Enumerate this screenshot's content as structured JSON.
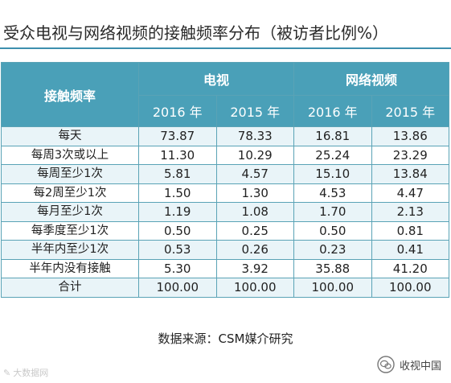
{
  "title": "受众电视与网络视频的接触频率分布（被访者比例%）",
  "table": {
    "corner_header": "接触频率",
    "groups": [
      "电视",
      "网络视频"
    ],
    "years": [
      "2016 年",
      "2015 年",
      "2016 年",
      "2015 年"
    ],
    "rows": [
      {
        "label": "每天",
        "values": [
          "73.87",
          "78.33",
          "16.81",
          "13.86"
        ]
      },
      {
        "label": "每周3次或以上",
        "values": [
          "11.30",
          "10.29",
          "25.24",
          "23.29"
        ]
      },
      {
        "label": "每周至少1次",
        "values": [
          "5.81",
          "4.57",
          "15.10",
          "13.84"
        ]
      },
      {
        "label": "每2周至少1次",
        "values": [
          "1.50",
          "1.30",
          "4.53",
          "4.47"
        ]
      },
      {
        "label": "每月至少1次",
        "values": [
          "1.19",
          "1.08",
          "1.70",
          "2.13"
        ]
      },
      {
        "label": "每季度至少1次",
        "values": [
          "0.50",
          "0.25",
          "0.50",
          "0.81"
        ]
      },
      {
        "label": "半年内至少1次",
        "values": [
          "0.53",
          "0.26",
          "0.23",
          "0.41"
        ]
      },
      {
        "label": "半年内没有接触",
        "values": [
          "5.30",
          "3.92",
          "35.88",
          "41.20"
        ]
      },
      {
        "label": "合计",
        "values": [
          "100.00",
          "100.00",
          "100.00",
          "100.00"
        ]
      }
    ]
  },
  "source": "数据来源：CSM媒介研究",
  "watermark_left": "大数据网",
  "watermark_right": "收视中国",
  "colors": {
    "header_bg": "#4aa0b8",
    "row_alt": "#e9f4f8",
    "rule": "#3d8fae"
  }
}
